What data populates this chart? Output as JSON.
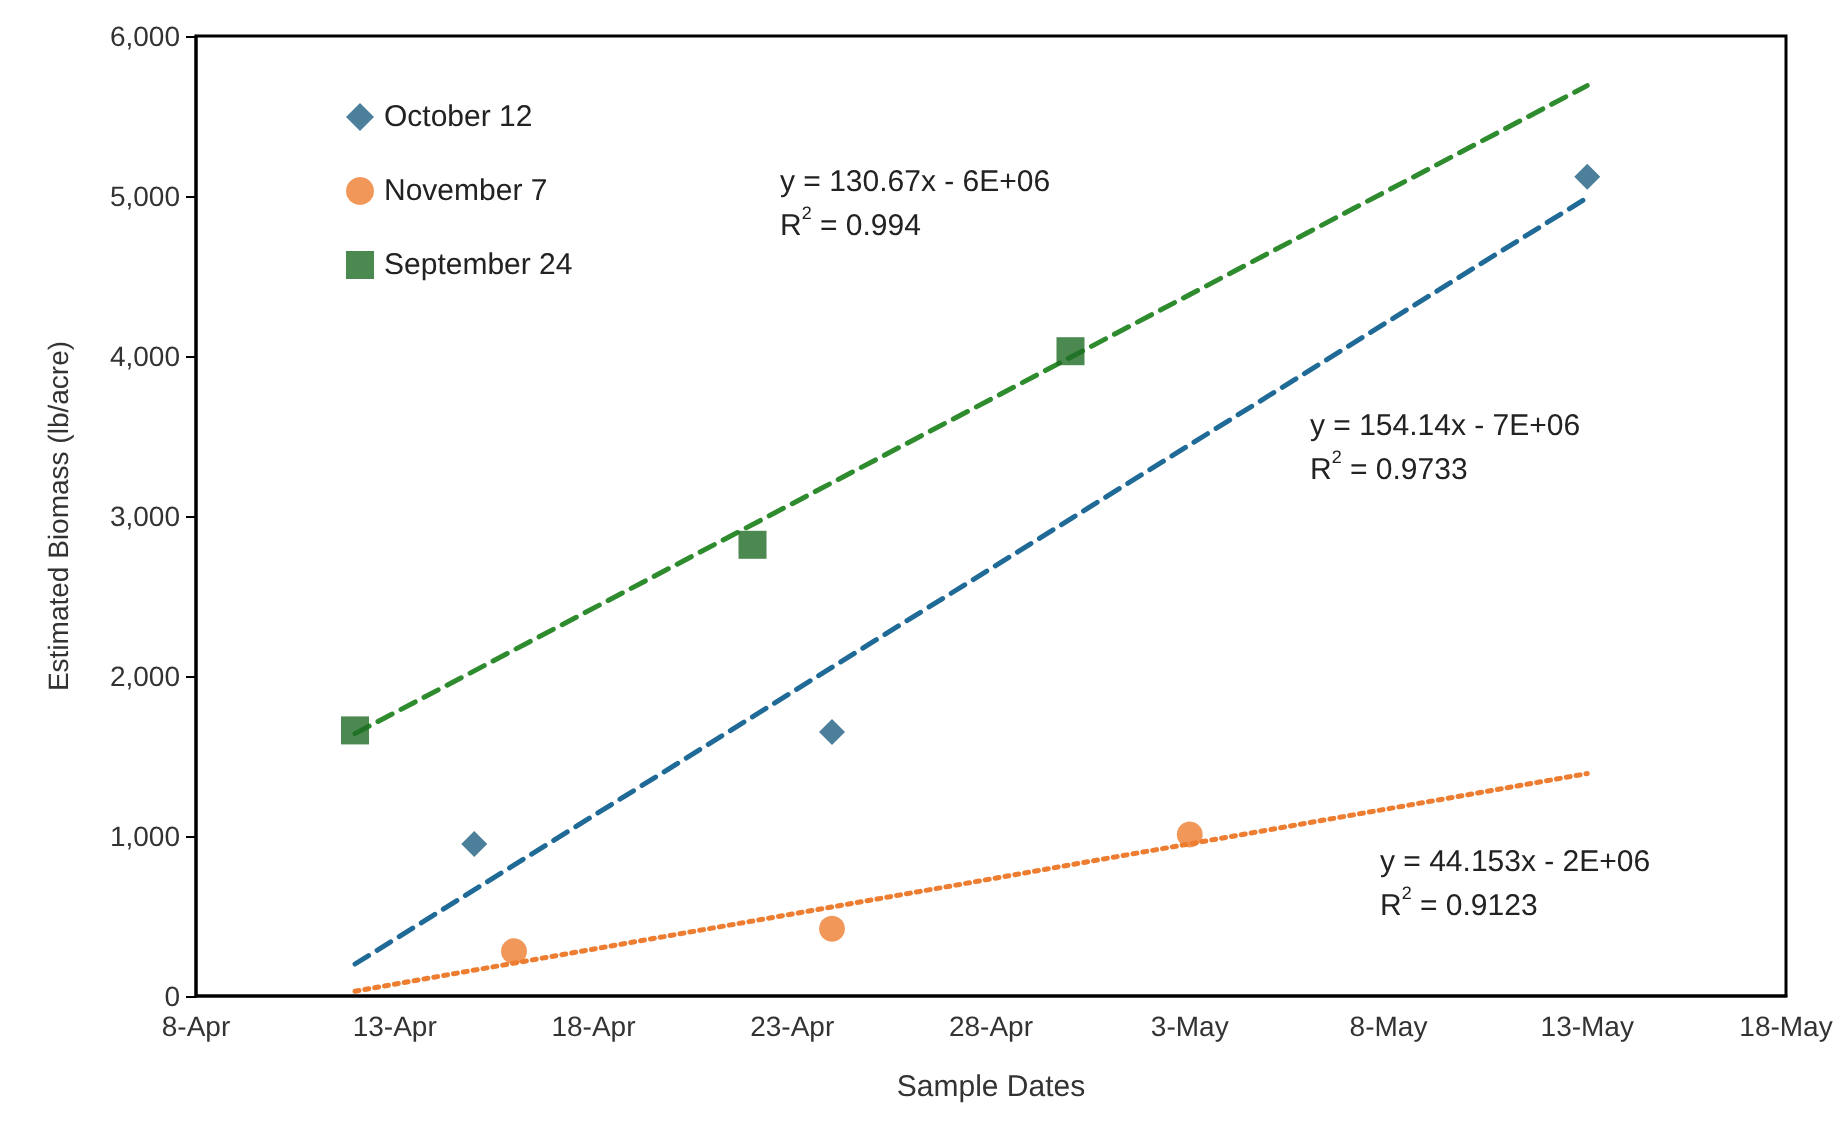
{
  "chart_data": {
    "type": "scatter",
    "xlabel": "Sample Dates",
    "ylabel": "Estimated Biomass (lb/acre)",
    "xlim": [
      "--04-08",
      "--05-18"
    ],
    "xticks": [
      {
        "value": "--04-08",
        "label": "8-Apr"
      },
      {
        "value": "--04-13",
        "label": "13-Apr"
      },
      {
        "value": "--04-18",
        "label": "18-Apr"
      },
      {
        "value": "--04-23",
        "label": "23-Apr"
      },
      {
        "value": "--04-28",
        "label": "28-Apr"
      },
      {
        "value": "--05-03",
        "label": "3-May"
      },
      {
        "value": "--05-08",
        "label": "8-May"
      },
      {
        "value": "--05-13",
        "label": "13-May"
      },
      {
        "value": "--05-18",
        "label": "18-May"
      }
    ],
    "ylim": [
      0,
      6000
    ],
    "yticks": [
      0,
      {
        "value": 1000,
        "label": "1,000"
      },
      {
        "value": 2000,
        "label": "2,000"
      },
      {
        "value": 3000,
        "label": "3,000"
      },
      {
        "value": 4000,
        "label": "4,000"
      },
      {
        "value": 5000,
        "label": "5,000"
      },
      {
        "value": 6000,
        "label": "6,000"
      }
    ],
    "grid": false,
    "legend": "top left",
    "series": [
      {
        "name": "October 12",
        "color": "#1f5f7f",
        "marker": "diamond",
        "x": [
          "--04-15",
          "--04-24",
          "--05-13"
        ],
        "values": [
          950,
          1650,
          5120
        ]
      },
      {
        "name": "November 7",
        "color": "#ed7d31",
        "marker": "circle",
        "x": [
          "--04-16",
          "--04-24",
          "--05-03"
        ],
        "values": [
          280,
          420,
          1010
        ]
      },
      {
        "name": "September 24",
        "color": "#1e6b24",
        "marker": "square",
        "x": [
          "--04-12",
          "--04-22",
          "--04-30"
        ],
        "values": [
          1660,
          2820,
          4030
        ]
      },
      {
        "type": "line",
        "color": "#2e8b2e",
        "marker": "none",
        "line_style": "dashed",
        "x": [
          "--04-12",
          "--05-13"
        ],
        "values": [
          1640,
          5690
        ]
      },
      {
        "type": "line",
        "color": "#1f6a96",
        "marker": "none",
        "line_style": "dashed",
        "x": [
          "--04-12",
          "--05-13"
        ],
        "values": [
          200,
          4990
        ]
      },
      {
        "type": "line",
        "color": "#ed7d31",
        "marker": "none",
        "line_style": "dotted",
        "x": [
          "--04-12",
          "--05-13"
        ],
        "values": [
          30,
          1390
        ]
      }
    ],
    "annotations": [
      "y = 130.67x - 6E+06\nR$^{2}$ = 0.994",
      "y = 154.14x - 7E+06\nR$^{2}$ = 0.9733",
      "y = 44.153x - 2E+06\nR$^{2}$ = 0.9123"
    ]
  }
}
